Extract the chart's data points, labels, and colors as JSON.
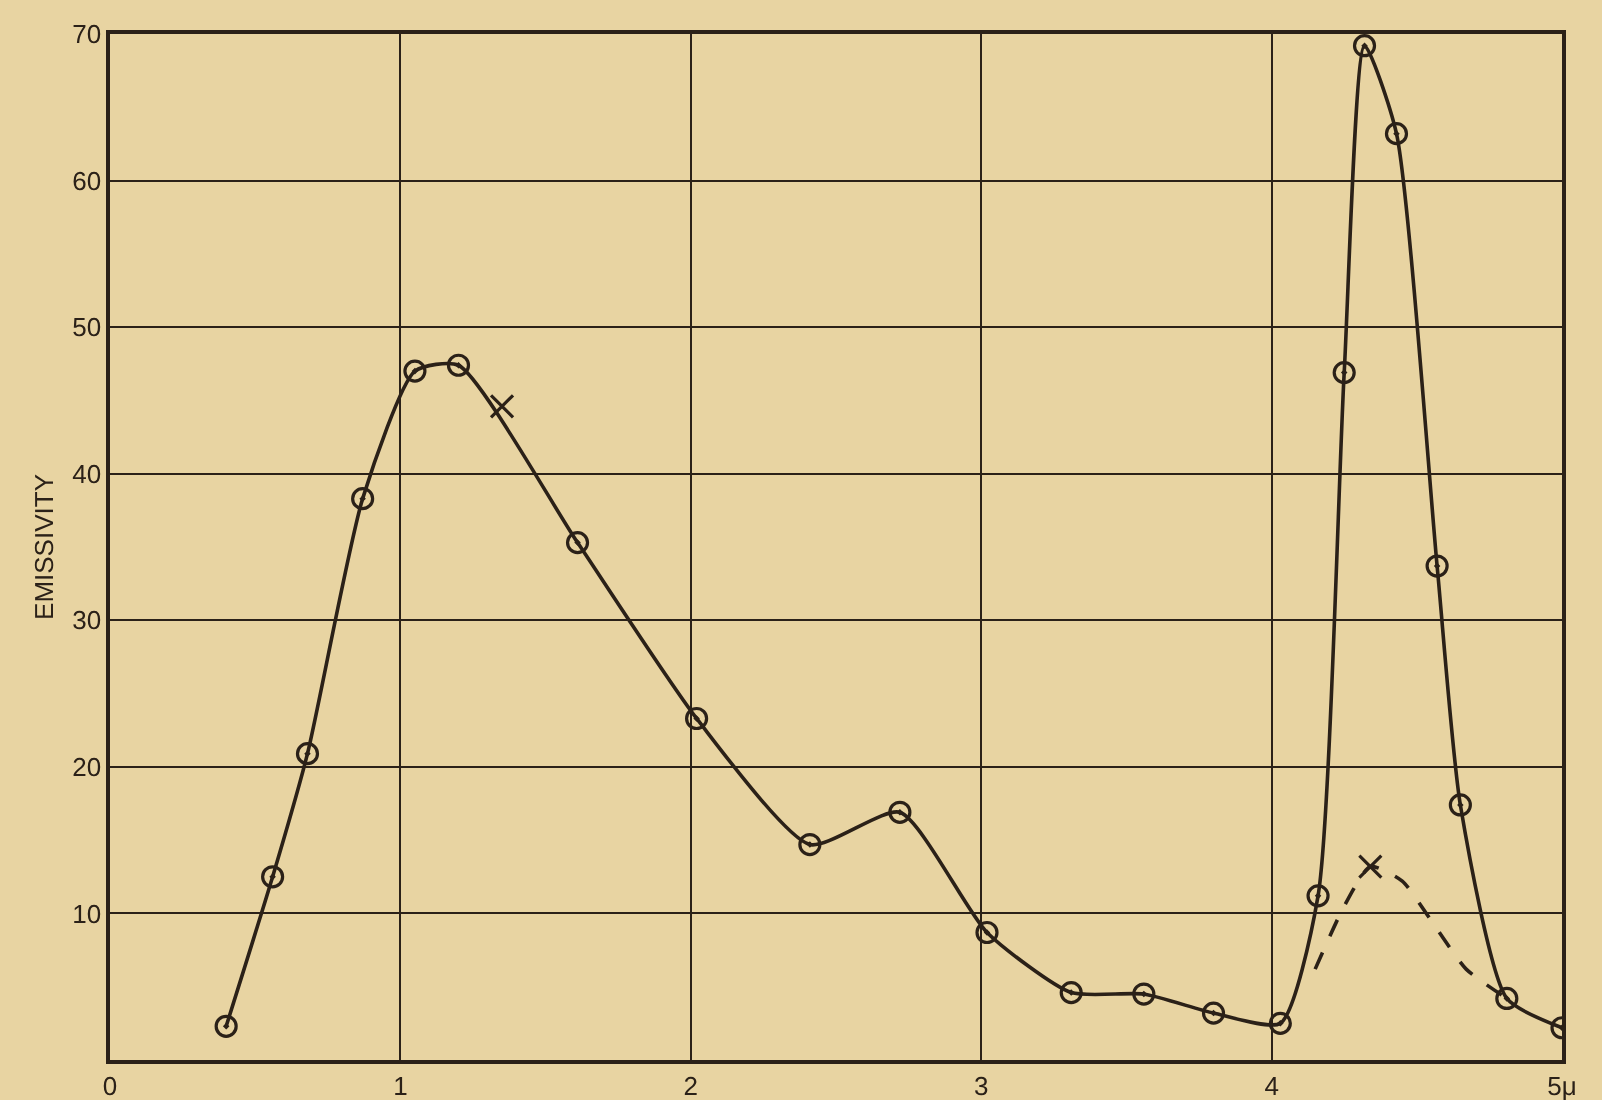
{
  "chart_data": {
    "type": "line",
    "ylabel": "EMISSIVITY",
    "xlim": [
      0,
      5
    ],
    "xticks": [
      0,
      1,
      2,
      3,
      4,
      {
        "value": 5,
        "label": "5μ"
      }
    ],
    "ylim": [
      0,
      70
    ],
    "yticks": [
      10,
      20,
      30,
      40,
      50,
      60,
      70
    ],
    "grid": true,
    "series": [
      {
        "color": "#2b2118",
        "marker": "circle",
        "line_style": "solid",
        "x": [
          0.4,
          0.56,
          0.68,
          0.87,
          1.05,
          1.2,
          1.61,
          2.02,
          2.41,
          2.72,
          3.02,
          3.31,
          3.56,
          3.8,
          4.03,
          4.16,
          4.25,
          4.32,
          4.43,
          4.57,
          4.65,
          4.81,
          5.0
        ],
        "values": [
          2.3,
          12.5,
          20.9,
          38.3,
          47.0,
          47.4,
          35.3,
          23.3,
          14.7,
          16.9,
          8.7,
          4.6,
          4.5,
          3.2,
          2.5,
          11.2,
          46.9,
          69.2,
          63.2,
          33.7,
          17.4,
          4.2,
          2.2
        ]
      },
      {
        "color": "#2b2118",
        "marker": "none",
        "line_style": "dashed",
        "x": [
          4.15,
          4.25,
          4.34,
          4.45,
          4.55,
          4.67,
          4.81
        ],
        "values": [
          6.2,
          10.5,
          13.2,
          12.2,
          9.5,
          6.2,
          4.2
        ]
      },
      {
        "type": "scatter",
        "color": "#2b2118",
        "marker": "cross",
        "x": [
          1.35,
          4.34
        ],
        "values": [
          44.6,
          13.2
        ]
      }
    ]
  }
}
